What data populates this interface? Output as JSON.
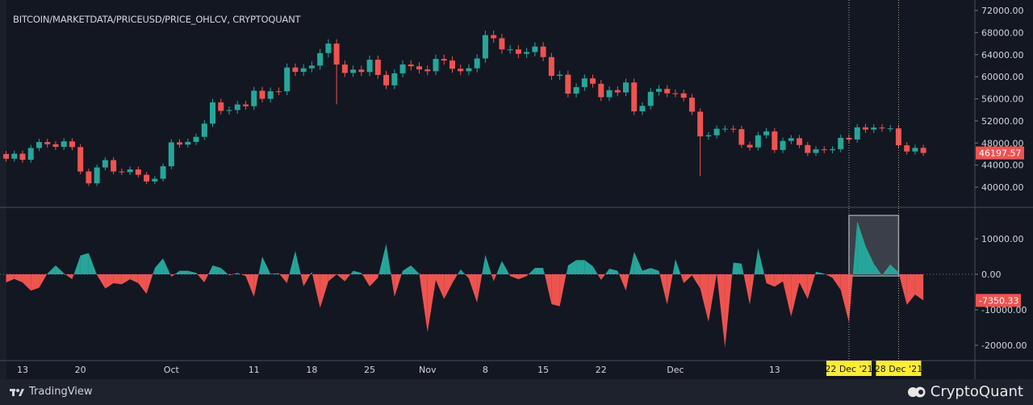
{
  "title": "BITCOIN/MARKETDATA/PRICEUSD/PRICE_OHLCV, CRYPTOQUANT",
  "footer": {
    "left_brand": "TradingView",
    "right_brand": "CryptoQuant"
  },
  "colors": {
    "background": "#131722",
    "up": "#26a69a",
    "down": "#ef5350",
    "highlight_label": "#ffeb3b"
  },
  "chart_data": [
    {
      "type": "candlestick",
      "title": "BITCOIN/MARKETDATA/PRICEUSD/PRICE_OHLCV, CRYPTOQUANT",
      "x_start": "2021-09-11",
      "x_end": "2021-12-31",
      "first_open": 46000,
      "close": [
        45160,
        46060,
        44960,
        47090,
        48180,
        47780,
        47300,
        48300,
        47260,
        42840,
        40690,
        43570,
        44900,
        42840,
        42720,
        43210,
        42240,
        41030,
        41520,
        43790,
        48120,
        47710,
        48200,
        49110,
        51510,
        55360,
        53810,
        53970,
        54970,
        54660,
        57470,
        56000,
        57370,
        57350,
        61670,
        60880,
        61530,
        62010,
        64280,
        66000,
        62210,
        60690,
        61290,
        60860,
        63080,
        60330,
        58450,
        60620,
        62230,
        61890,
        61320,
        61000,
        63230,
        62940,
        61450,
        61000,
        61530,
        63310,
        67540,
        66970,
        64950,
        64950,
        64150,
        64470,
        65470,
        63560,
        60160,
        60370,
        56940,
        58120,
        59700,
        58730,
        56290,
        57570,
        57160,
        58960,
        53730,
        54720,
        57270,
        57800,
        57000,
        56990,
        56200,
        53670,
        49200,
        49400,
        50580,
        50580,
        50500,
        47670,
        47190,
        49400,
        50100,
        46740,
        48380,
        48860,
        47630,
        46200,
        46850,
        46700,
        46880,
        48940,
        48630,
        50840,
        50430,
        50800,
        50640,
        50640,
        47590,
        46460,
        47120,
        46197.57
      ],
      "low_outliers": {
        "2021-12-04": 42000,
        "2021-10-21": 55000
      },
      "y_ticks": [
        "72000.00",
        "68000.00",
        "64000.00",
        "60000.00",
        "56000.00",
        "52000.00",
        "48000.00",
        "44000.00",
        "40000.00"
      ],
      "ylim": [
        40000,
        72000
      ],
      "last_value_label": "46197.57"
    },
    {
      "type": "area",
      "x_start": "2021-09-11",
      "x_end": "2021-12-31",
      "values": [
        -2300,
        -1300,
        -2300,
        -4600,
        -3800,
        200,
        2500,
        300,
        -1400,
        5300,
        6000,
        -200,
        -4000,
        -2500,
        -2800,
        -1400,
        -2500,
        -5500,
        1800,
        4500,
        -700,
        1000,
        1000,
        400,
        -2300,
        2500,
        1800,
        -300,
        400,
        -500,
        -6400,
        5000,
        100,
        300,
        -2500,
        6600,
        -3400,
        700,
        -9500,
        -2000,
        0,
        -2000,
        1000,
        400,
        -3400,
        -1000,
        8600,
        -6400,
        1000,
        2500,
        100,
        -16400,
        -1600,
        -7000,
        -2500,
        1400,
        -1200,
        -8000,
        5500,
        -2000,
        3800,
        -500,
        -1400,
        -500,
        1800,
        1800,
        -8400,
        -9000,
        2500,
        4000,
        4000,
        2300,
        -1600,
        1600,
        1000,
        -4600,
        6400,
        1000,
        1800,
        1000,
        -8600,
        4300,
        -2500,
        -300,
        -4000,
        -13400,
        200,
        -20700,
        3300,
        3000,
        -8600,
        7400,
        -2500,
        -3500,
        -2000,
        -12000,
        -2300,
        -7000,
        700,
        200,
        -1000,
        -4400,
        -13600,
        15000,
        8000,
        3000,
        -300,
        2800,
        500,
        -8600,
        -5700,
        -7350.33
      ],
      "y_ticks": [
        "10000.00",
        "0.00",
        "-10000.00",
        "-20000.00"
      ],
      "ylim": [
        -24000,
        19000
      ],
      "last_value_label": "-7350.33",
      "highlight": {
        "from": "22 Dec '21",
        "to": "28 Dec '21"
      }
    }
  ],
  "x_ticks": [
    "13",
    "20",
    "Oct",
    "11",
    "18",
    "25",
    "Nov",
    "8",
    "15",
    "22",
    "Dec",
    "13"
  ]
}
